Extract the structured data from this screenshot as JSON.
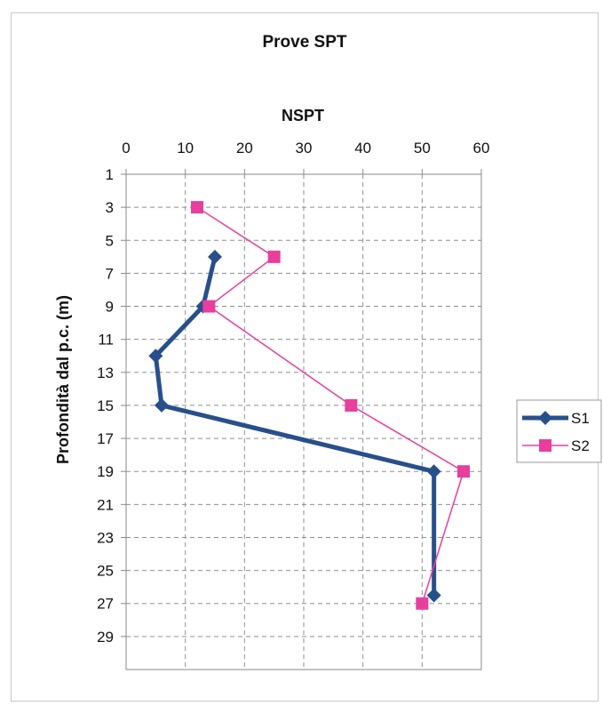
{
  "chart_data": {
    "type": "line",
    "title": "Prove SPT",
    "xlabel": "NSPT",
    "ylabel": "Profondità dal p.c. (m)",
    "xlim": [
      0,
      60
    ],
    "ylim": [
      1,
      31
    ],
    "y_inverted": true,
    "x_axis_position": "top",
    "x_ticks": [
      "0",
      "10",
      "20",
      "30",
      "40",
      "50",
      "60"
    ],
    "y_ticks": [
      "1",
      "3",
      "5",
      "7",
      "9",
      "11",
      "13",
      "15",
      "17",
      "19",
      "21",
      "23",
      "25",
      "27",
      "29"
    ],
    "grid": "dashed",
    "legend_position": "right",
    "series": [
      {
        "name": "S1",
        "color": "#274f8c",
        "marker": "diamond",
        "points": [
          {
            "x": 15,
            "y": 6
          },
          {
            "x": 13,
            "y": 9
          },
          {
            "x": 5,
            "y": 12
          },
          {
            "x": 6,
            "y": 15
          },
          {
            "x": 52,
            "y": 19
          },
          {
            "x": 52,
            "y": 26.5
          }
        ]
      },
      {
        "name": "S2",
        "color": "#e83e9e",
        "marker": "square",
        "points": [
          {
            "x": 12,
            "y": 3
          },
          {
            "x": 25,
            "y": 6
          },
          {
            "x": 14,
            "y": 9
          },
          {
            "x": 38,
            "y": 15
          },
          {
            "x": 57,
            "y": 19
          },
          {
            "x": 50,
            "y": 27
          }
        ]
      }
    ]
  }
}
